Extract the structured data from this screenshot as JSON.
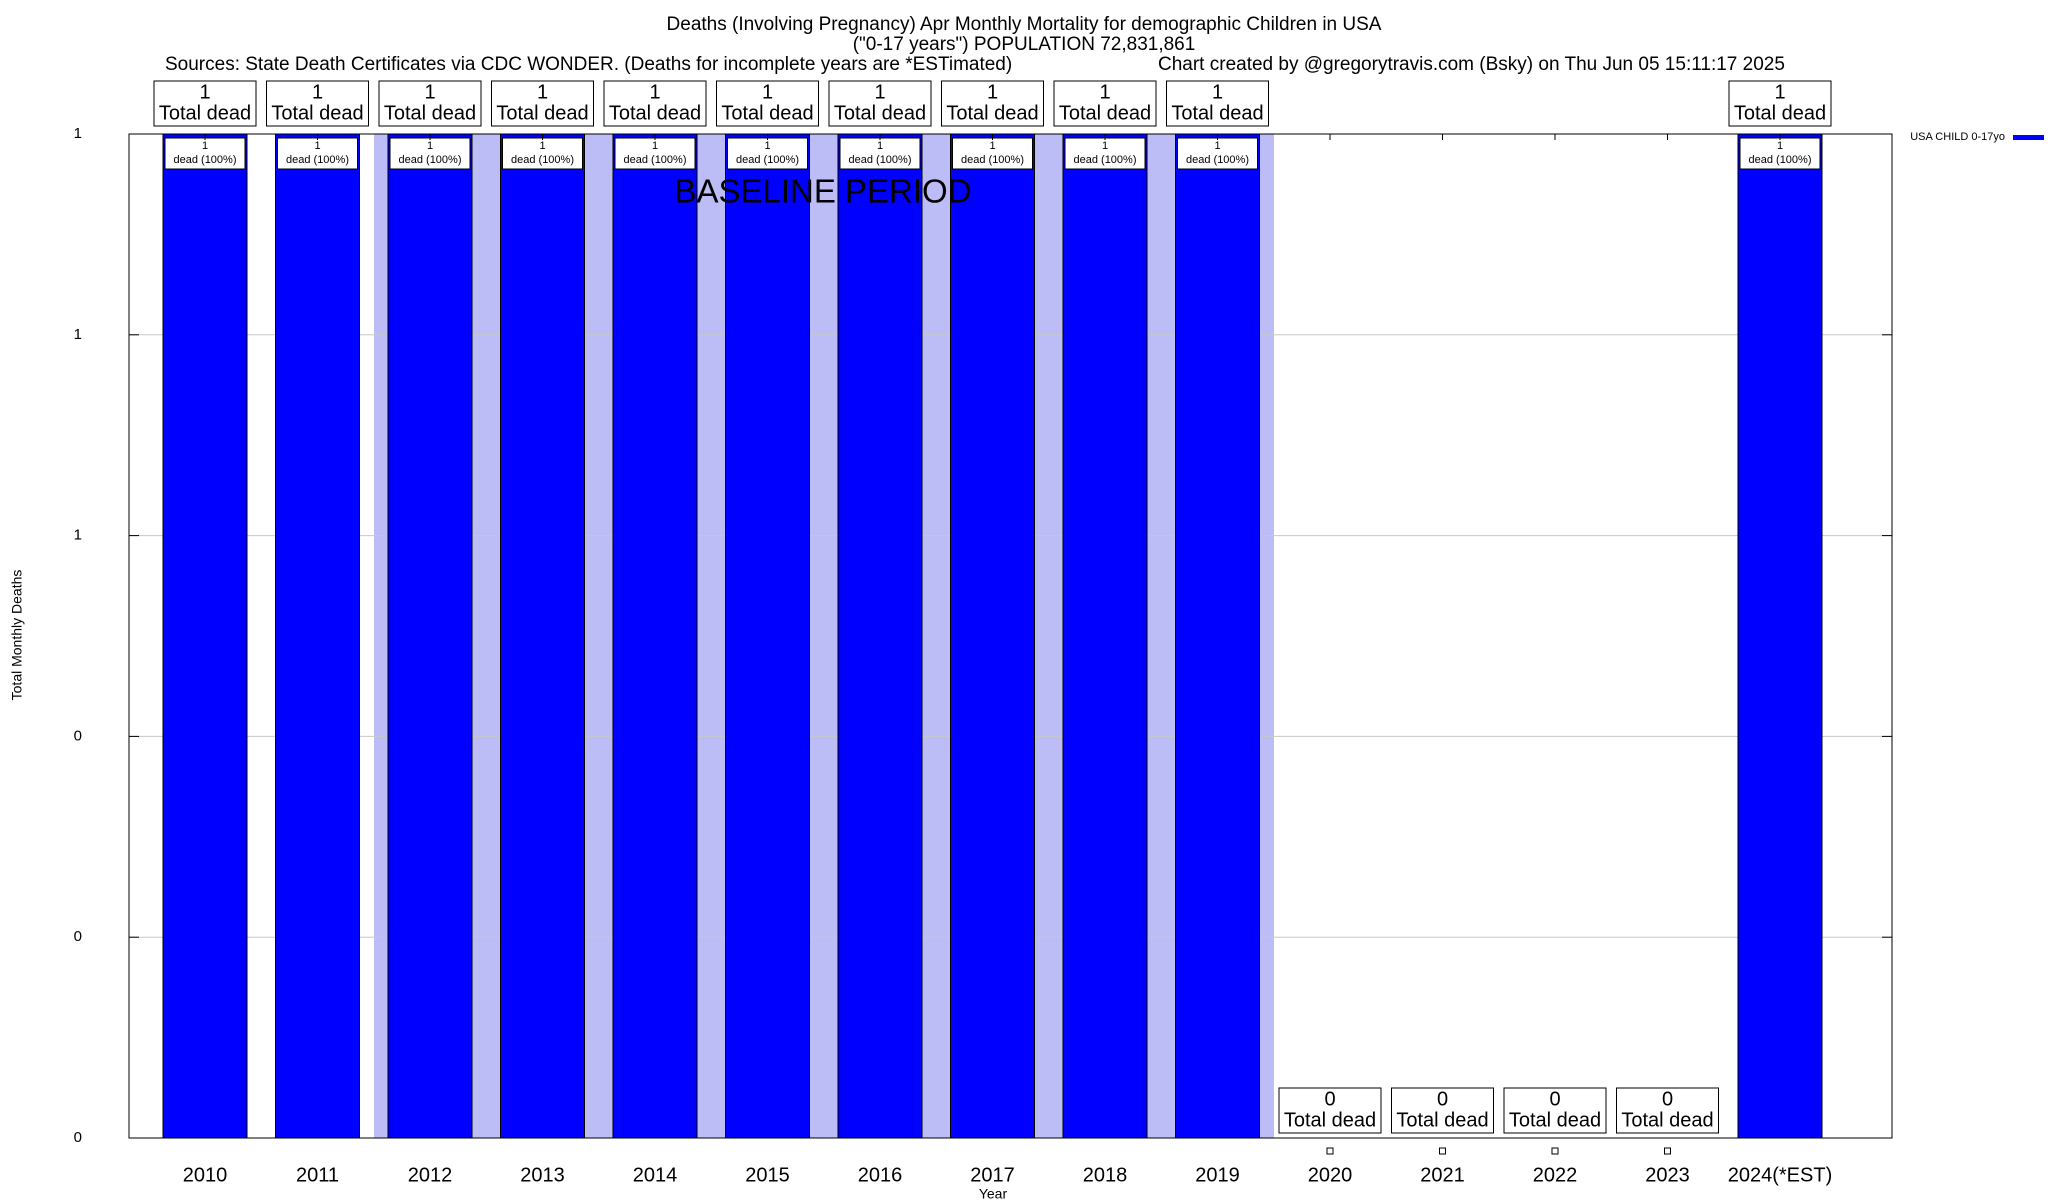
{
  "chart_data": {
    "type": "bar",
    "title": "Deaths (Involving Pregnancy) Apr Monthly Mortality for demographic Children in USA",
    "subtitle": "(\"0-17 years\") POPULATION 72,831,861",
    "sources": "Sources: State Death Certificates via CDC WONDER. (Deaths for incomplete years are *ESTimated)",
    "credit": "Chart created by @gregorytravis.com (Bsky) on Thu Jun 05 15:11:17 2025",
    "annotation": "BASELINE PERIOD",
    "xlabel": "Year",
    "ylabel": "Total Monthly Deaths",
    "categories": [
      "2010",
      "2011",
      "2012",
      "2013",
      "2014",
      "2015",
      "2016",
      "2017",
      "2018",
      "2019",
      "2020",
      "2021",
      "2022",
      "2023",
      "2024(*EST)"
    ],
    "series": [
      {
        "name": "USA CHILD 0-17yo",
        "color": "#0000ff",
        "values": [
          1,
          1,
          1,
          1,
          1,
          1,
          1,
          1,
          1,
          1,
          0,
          0,
          0,
          0,
          1
        ]
      }
    ],
    "total_label": "Total dead",
    "share_labels": [
      "dead (100%)",
      "dead (100%)",
      "dead (100%)",
      "dead (100%)",
      "dead (100%)",
      "dead (100%)",
      "dead (100%)",
      "dead (100%)",
      "dead (100%)",
      "dead (100%)",
      null,
      null,
      null,
      null,
      "dead (100%)"
    ],
    "ylim": [
      0,
      1
    ],
    "yticks": [
      0,
      {
        "value": 0.2,
        "label": "0"
      },
      {
        "value": 0.4,
        "label": "0"
      },
      {
        "value": 0.6,
        "label": "1"
      },
      {
        "value": 0.8,
        "label": "1"
      },
      1
    ],
    "grid": true,
    "legend": "top-right"
  }
}
